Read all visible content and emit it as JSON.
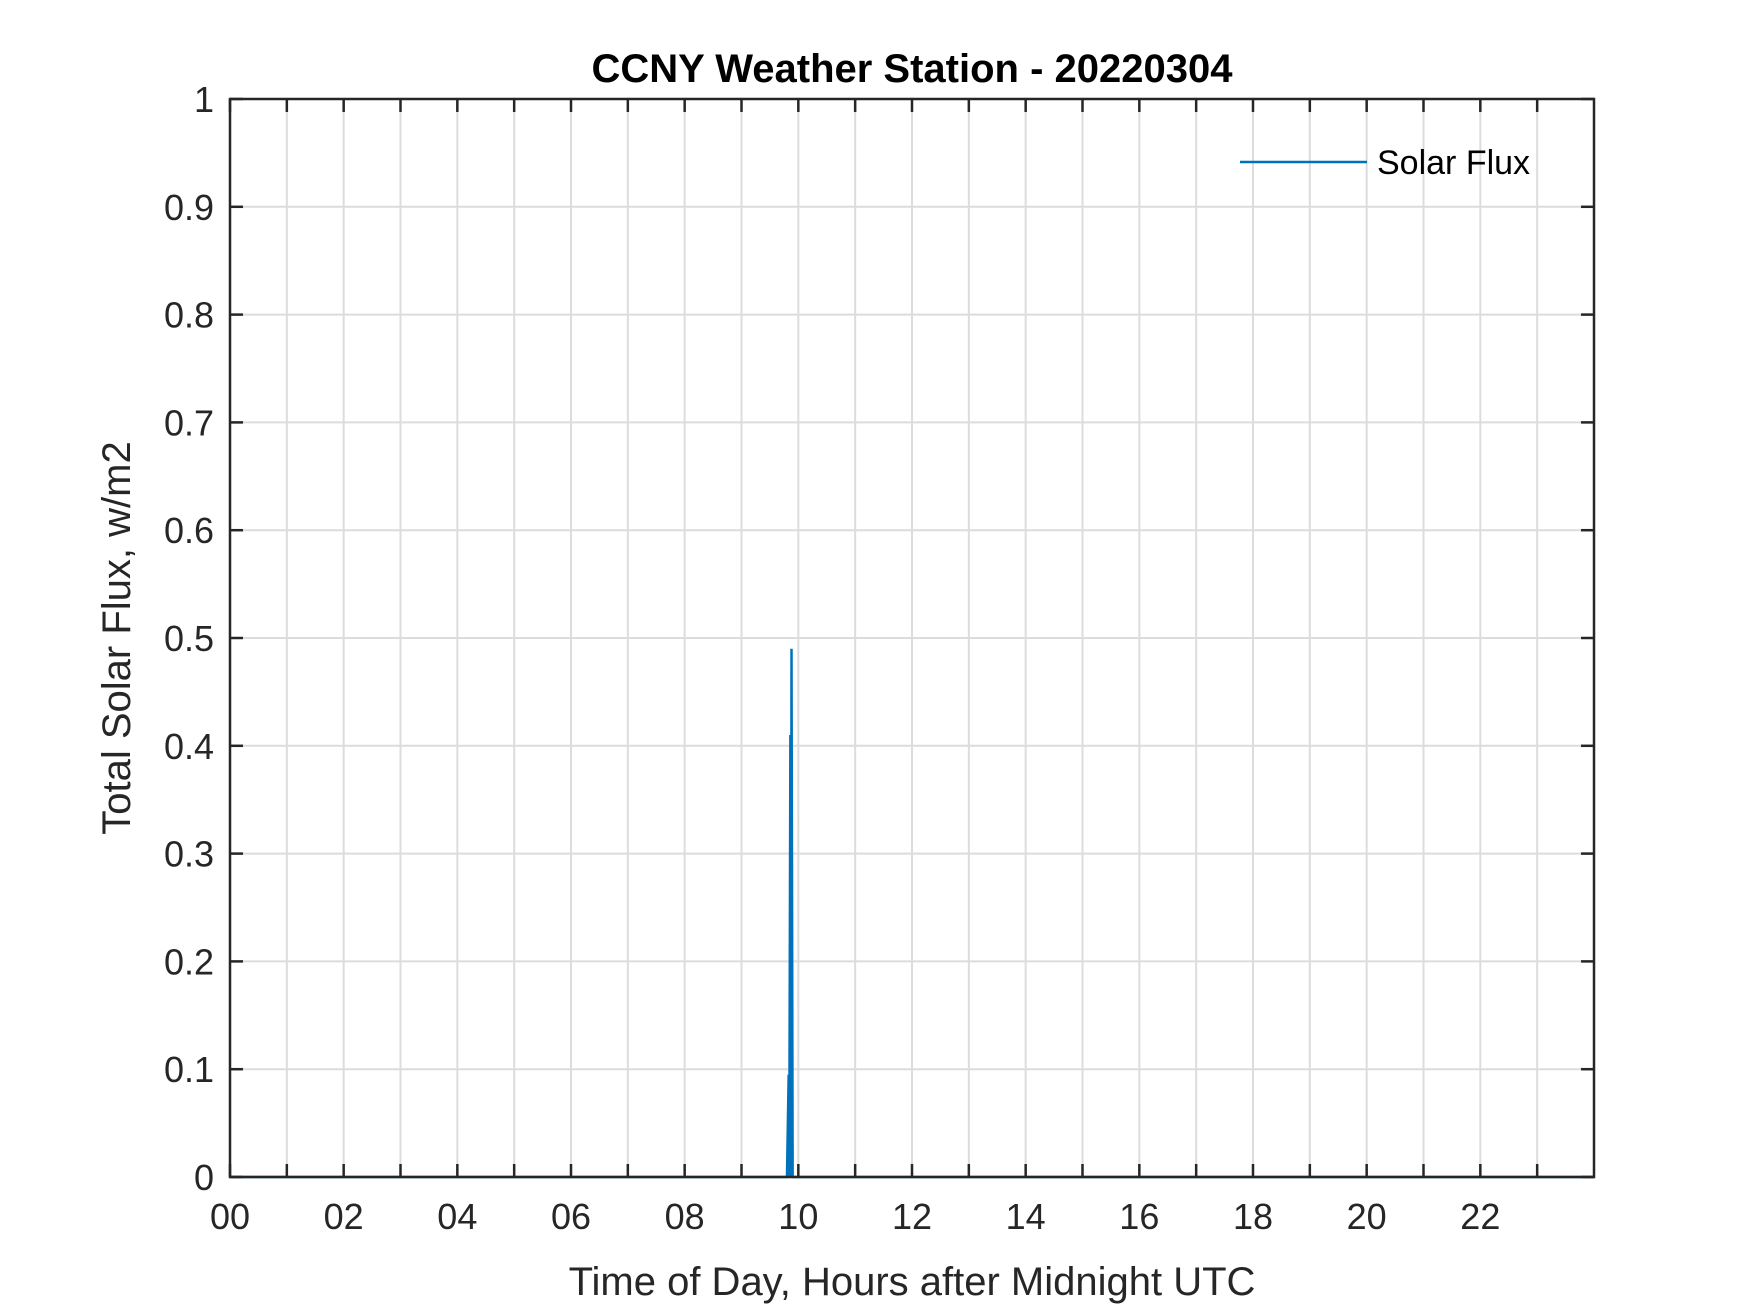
{
  "chart_data": {
    "type": "line",
    "title": "CCNY Weather Station - 20220304",
    "xlabel": "Time of Day, Hours after Midnight UTC",
    "ylabel": "Total Solar Flux, w/m2",
    "xlim": [
      0,
      24
    ],
    "ylim": [
      0,
      1
    ],
    "xticks": [
      0,
      1,
      2,
      3,
      4,
      5,
      6,
      7,
      8,
      9,
      10,
      11,
      12,
      13,
      14,
      15,
      16,
      17,
      18,
      19,
      20,
      21,
      22,
      23
    ],
    "xtick_labels": [
      "00",
      "02",
      "04",
      "06",
      "08",
      "10",
      "12",
      "14",
      "16",
      "18",
      "20",
      "22"
    ],
    "xtick_label_values": [
      0,
      2,
      4,
      6,
      8,
      10,
      12,
      14,
      16,
      18,
      20,
      22
    ],
    "yticks": [
      0,
      0.1,
      0.2,
      0.3,
      0.4,
      0.5,
      0.6,
      0.7,
      0.8,
      0.9,
      1
    ],
    "ytick_labels": [
      "0",
      "0.1",
      "0.2",
      "0.3",
      "0.4",
      "0.5",
      "0.6",
      "0.7",
      "0.8",
      "0.9",
      "1"
    ],
    "grid": true,
    "legend": {
      "position": "top-right",
      "entries": [
        "Solar Flux"
      ]
    },
    "series": [
      {
        "name": "Solar Flux",
        "color": "#0072BD",
        "x": [
          0,
          9.8,
          9.83,
          9.84,
          9.86,
          9.87,
          9.88,
          9.9,
          24
        ],
        "y": [
          0,
          0,
          0.095,
          0,
          0.41,
          0,
          0.49,
          0,
          0
        ]
      }
    ]
  }
}
